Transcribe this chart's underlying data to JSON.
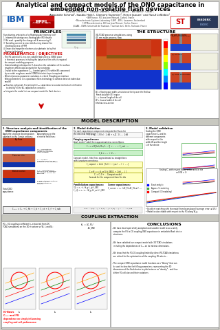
{
  "title_line1": "Analytical and compact models of the ONO capacitance in",
  "title_line2": "embedded non-volatile flash devices",
  "authors_line1": "Davide Garetto¹ʰ, Erwan Dornel¹, Denis Rideau¹, William F. Clark²,",
  "authors_line2": "Alexandre Schmid³, Saadia Hniki⁴, Clement Tavernier⁵, Hervé Jaouen¹ and Yusuf LeSlebici³",
  "affil1": "¹ IBM France, P.O. box Jean Menand, Corbeil, France",
  "affil2": "¹ Microelectronic Systems Laboratory (LSM) - EPFL, Lausanne, Switzerland",
  "affil3": "§ STMicroelectronics, 850 rue Jean Monnet, Crolles, France",
  "affil4": "‡ LAAS - CNRS, Université de Toulouse, 7 avenue du C. Belin, Toulouse, France",
  "section_principles": "PRINCIPLES",
  "section_structure": "THE STRUCTURE",
  "section_model": "MODEL DESCRIPTION",
  "section_coupling": "COUPLING EXTRACTION",
  "section_conclusions": "CONCLUSIONS",
  "problematics_title": "PROBLEMATICS / OBJECTIVES",
  "bg_color": "#d0cfc8",
  "poster_bg": "#f0efea",
  "header_bg": "#ffffff",
  "section_header_bg": "#c8c8c0",
  "inner_bg": "#ffffff",
  "title_color": "#000000",
  "accent_red": "#cc0000",
  "accent_blue": "#0000cc",
  "logo_ibm_color": "#1f70c1",
  "green_box": "#c8f0c8",
  "yellow_box": "#ffffc0",
  "green_border": "#44aa44",
  "yellow_border": "#aaaa00"
}
